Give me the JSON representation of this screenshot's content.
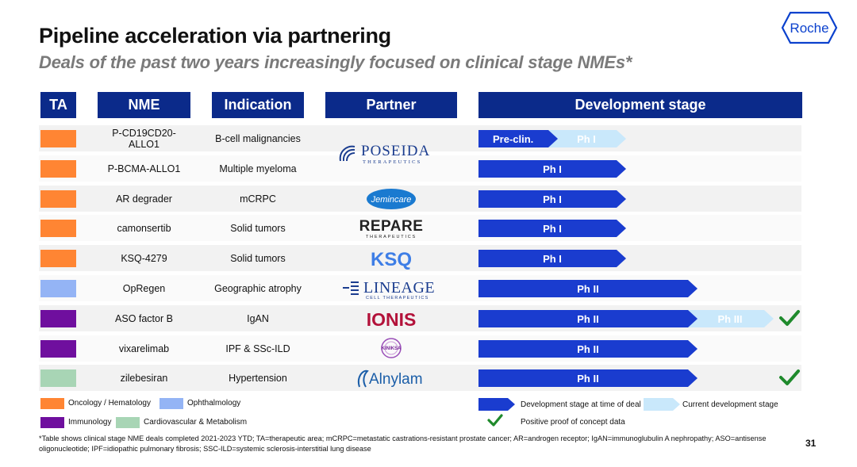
{
  "title": "Pipeline acceleration via partnering",
  "subtitle": "Deals of the past two years increasingly focused on clinical stage NMEs*",
  "logo": "Roche",
  "headers": {
    "ta": "TA",
    "nme": "NME",
    "indication": "Indication",
    "partner": "Partner",
    "dev": "Development stage"
  },
  "colors": {
    "header_bg": "#0b2a8a",
    "oncology": "#ff8533",
    "ophthalmology": "#94b4f5",
    "immunology": "#6f0f9e",
    "cardio": "#a8d5b5",
    "stage_at_deal": "#1a3ccf",
    "current_stage": "#c9e8fb",
    "check": "#1f8a2c"
  },
  "rows": [
    {
      "ta": "oncology",
      "nme": "P-CD19CD20-ALLO1",
      "indication": "B-cell malignancies",
      "partner": "POSEIDA",
      "deal_stage": "Pre-clin.",
      "current_stage": "Ph I",
      "poc": false
    },
    {
      "ta": "oncology",
      "nme": "P-BCMA-ALLO1",
      "indication": "Multiple myeloma",
      "partner": "POSEIDA",
      "deal_stage": "Ph I",
      "current_stage": "",
      "poc": false
    },
    {
      "ta": "oncology",
      "nme": "AR degrader",
      "indication": "mCRPC",
      "partner": "Jemincare",
      "deal_stage": "Ph I",
      "current_stage": "",
      "poc": false
    },
    {
      "ta": "oncology",
      "nme": "camonsertib",
      "indication": "Solid tumors",
      "partner": "REPARE",
      "deal_stage": "Ph I",
      "current_stage": "",
      "poc": false
    },
    {
      "ta": "oncology",
      "nme": "KSQ-4279",
      "indication": "Solid tumors",
      "partner": "KSQ",
      "deal_stage": "Ph I",
      "current_stage": "",
      "poc": false
    },
    {
      "ta": "ophthalmology",
      "nme": "OpRegen",
      "indication": "Geographic atrophy",
      "partner": "LINEAGE",
      "deal_stage": "Ph II",
      "current_stage": "",
      "poc": false
    },
    {
      "ta": "immunology",
      "nme": "ASO factor B",
      "indication": "IgAN",
      "partner": "IONIS",
      "deal_stage": "Ph II",
      "current_stage": "Ph III",
      "poc": true
    },
    {
      "ta": "immunology",
      "nme": "vixarelimab",
      "indication": "IPF & SSc-ILD",
      "partner": "KINIKSA",
      "deal_stage": "Ph II",
      "current_stage": "",
      "poc": false
    },
    {
      "ta": "cardio",
      "nme": "zilebesiran",
      "indication": "Hypertension",
      "partner": "Alnylam",
      "deal_stage": "Ph II",
      "current_stage": "",
      "poc": true
    }
  ],
  "partners": {
    "poseida_name": "POSEIDA",
    "poseida_sub": "THERAPEUTICS",
    "jemincare": "Jemincare",
    "repare_name": "REPARE",
    "repare_sub": "THERAPEUTICS",
    "ksq": "KSQ",
    "lineage_name": "LINEAGE",
    "lineage_sub": "CELL THERAPEUTICS",
    "ionis": "IONIS",
    "kiniksa": "KINIKSA",
    "alnylam": "Alnylam"
  },
  "legend": {
    "oncology": "Oncology / Hematology",
    "ophthalmology": "Ophthalmology",
    "immunology": "Immunology",
    "cardio": "Cardiovascular & Metabolism",
    "stage_at_deal": "Development stage at time of deal",
    "current_stage": "Current development stage",
    "poc": "Positive proof of concept data"
  },
  "footnote": "*Table shows clinical stage NME deals completed 2021-2023 YTD; TA=therapeutic area; mCRPC=metastatic castrations-resistant prostate cancer; AR=androgen receptor; IgAN=immunoglubulin A nephropathy; ASO=antisense oligonucleotide; IPF=idiopathic pulmonary fibrosis; SSC-ILD=systemic sclerosis-interstitial lung disease",
  "page_number": "31"
}
